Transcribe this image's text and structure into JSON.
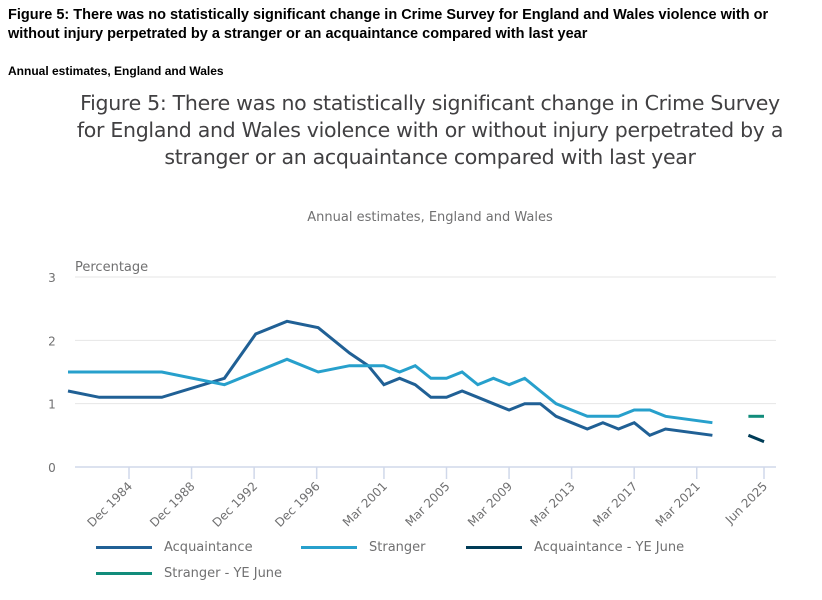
{
  "page": {
    "heading": "Figure 5:  There was no statistically significant change in Crime Survey for England and Wales violence with or without injury perpetrated by a stranger or an acquaintance compared with last year",
    "subheading": "Annual estimates, England and Wales"
  },
  "chart_data": {
    "type": "line",
    "title": "Figure 5:  There was no statistically significant change in Crime Survey for England and Wales violence with or without injury perpetrated by a stranger or an acquaintance compared with last year",
    "subtitle": "Annual estimates, England and Wales",
    "xlabel": "",
    "ylabel": "Percentage",
    "ylim": [
      0,
      3
    ],
    "yticks": [
      0,
      1,
      2,
      3
    ],
    "xlim": [
      1980.5,
      2026.0
    ],
    "grid": true,
    "xticks": [
      {
        "label": "Dec 1984",
        "x": 1984.9
      },
      {
        "label": "Dec 1988",
        "x": 1988.9
      },
      {
        "label": "Dec 1992",
        "x": 1992.9
      },
      {
        "label": "Dec 1996",
        "x": 1996.9
      },
      {
        "label": "Mar 2001",
        "x": 2001.2
      },
      {
        "label": "Mar 2005",
        "x": 2005.2
      },
      {
        "label": "Mar 2009",
        "x": 2009.2
      },
      {
        "label": "Mar 2013",
        "x": 2013.2
      },
      {
        "label": "Mar 2017",
        "x": 2017.2
      },
      {
        "label": "Mar 2021",
        "x": 2021.2
      },
      {
        "label": "Jun 2025",
        "x": 2025.5
      }
    ],
    "legend_position": "bottom",
    "series": [
      {
        "name": "Acquaintance",
        "color": "#206095",
        "points": [
          [
            1981.0,
            1.2
          ],
          [
            1983.0,
            1.1
          ],
          [
            1987.0,
            1.1
          ],
          [
            1991.0,
            1.4
          ],
          [
            1993.0,
            2.1
          ],
          [
            1995.0,
            2.3
          ],
          [
            1997.0,
            2.2
          ],
          [
            1999.0,
            1.8
          ],
          [
            2000.2,
            1.6
          ],
          [
            2001.2,
            1.3
          ],
          [
            2002.2,
            1.4
          ],
          [
            2003.2,
            1.3
          ],
          [
            2004.2,
            1.1
          ],
          [
            2005.2,
            1.1
          ],
          [
            2006.2,
            1.2
          ],
          [
            2007.2,
            1.1
          ],
          [
            2008.2,
            1.0
          ],
          [
            2009.2,
            0.9
          ],
          [
            2010.2,
            1.0
          ],
          [
            2011.2,
            1.0
          ],
          [
            2012.2,
            0.8
          ],
          [
            2013.2,
            0.7
          ],
          [
            2014.2,
            0.6
          ],
          [
            2015.2,
            0.7
          ],
          [
            2016.2,
            0.6
          ],
          [
            2017.2,
            0.7
          ],
          [
            2018.2,
            0.5
          ],
          [
            2019.2,
            0.6
          ],
          [
            2022.2,
            0.5
          ]
        ]
      },
      {
        "name": "Stranger",
        "color": "#27a0cc",
        "points": [
          [
            1981.0,
            1.5
          ],
          [
            1983.0,
            1.5
          ],
          [
            1987.0,
            1.5
          ],
          [
            1991.0,
            1.3
          ],
          [
            1993.0,
            1.5
          ],
          [
            1995.0,
            1.7
          ],
          [
            1997.0,
            1.5
          ],
          [
            1999.0,
            1.6
          ],
          [
            2000.2,
            1.6
          ],
          [
            2001.2,
            1.6
          ],
          [
            2002.2,
            1.5
          ],
          [
            2003.2,
            1.6
          ],
          [
            2004.2,
            1.4
          ],
          [
            2005.2,
            1.4
          ],
          [
            2006.2,
            1.5
          ],
          [
            2007.2,
            1.3
          ],
          [
            2008.2,
            1.4
          ],
          [
            2009.2,
            1.3
          ],
          [
            2010.2,
            1.4
          ],
          [
            2011.2,
            1.2
          ],
          [
            2012.2,
            1.0
          ],
          [
            2013.2,
            0.9
          ],
          [
            2014.2,
            0.8
          ],
          [
            2015.2,
            0.8
          ],
          [
            2016.2,
            0.8
          ],
          [
            2017.2,
            0.9
          ],
          [
            2018.2,
            0.9
          ],
          [
            2019.2,
            0.8
          ],
          [
            2022.2,
            0.7
          ]
        ]
      },
      {
        "name": "Acquaintance - YE June",
        "color": "#003c57",
        "points": [
          [
            2024.5,
            0.5
          ],
          [
            2025.5,
            0.4
          ]
        ]
      },
      {
        "name": "Stranger - YE June",
        "color": "#118c7b",
        "points": [
          [
            2024.5,
            0.8
          ],
          [
            2025.5,
            0.8
          ]
        ]
      }
    ]
  }
}
